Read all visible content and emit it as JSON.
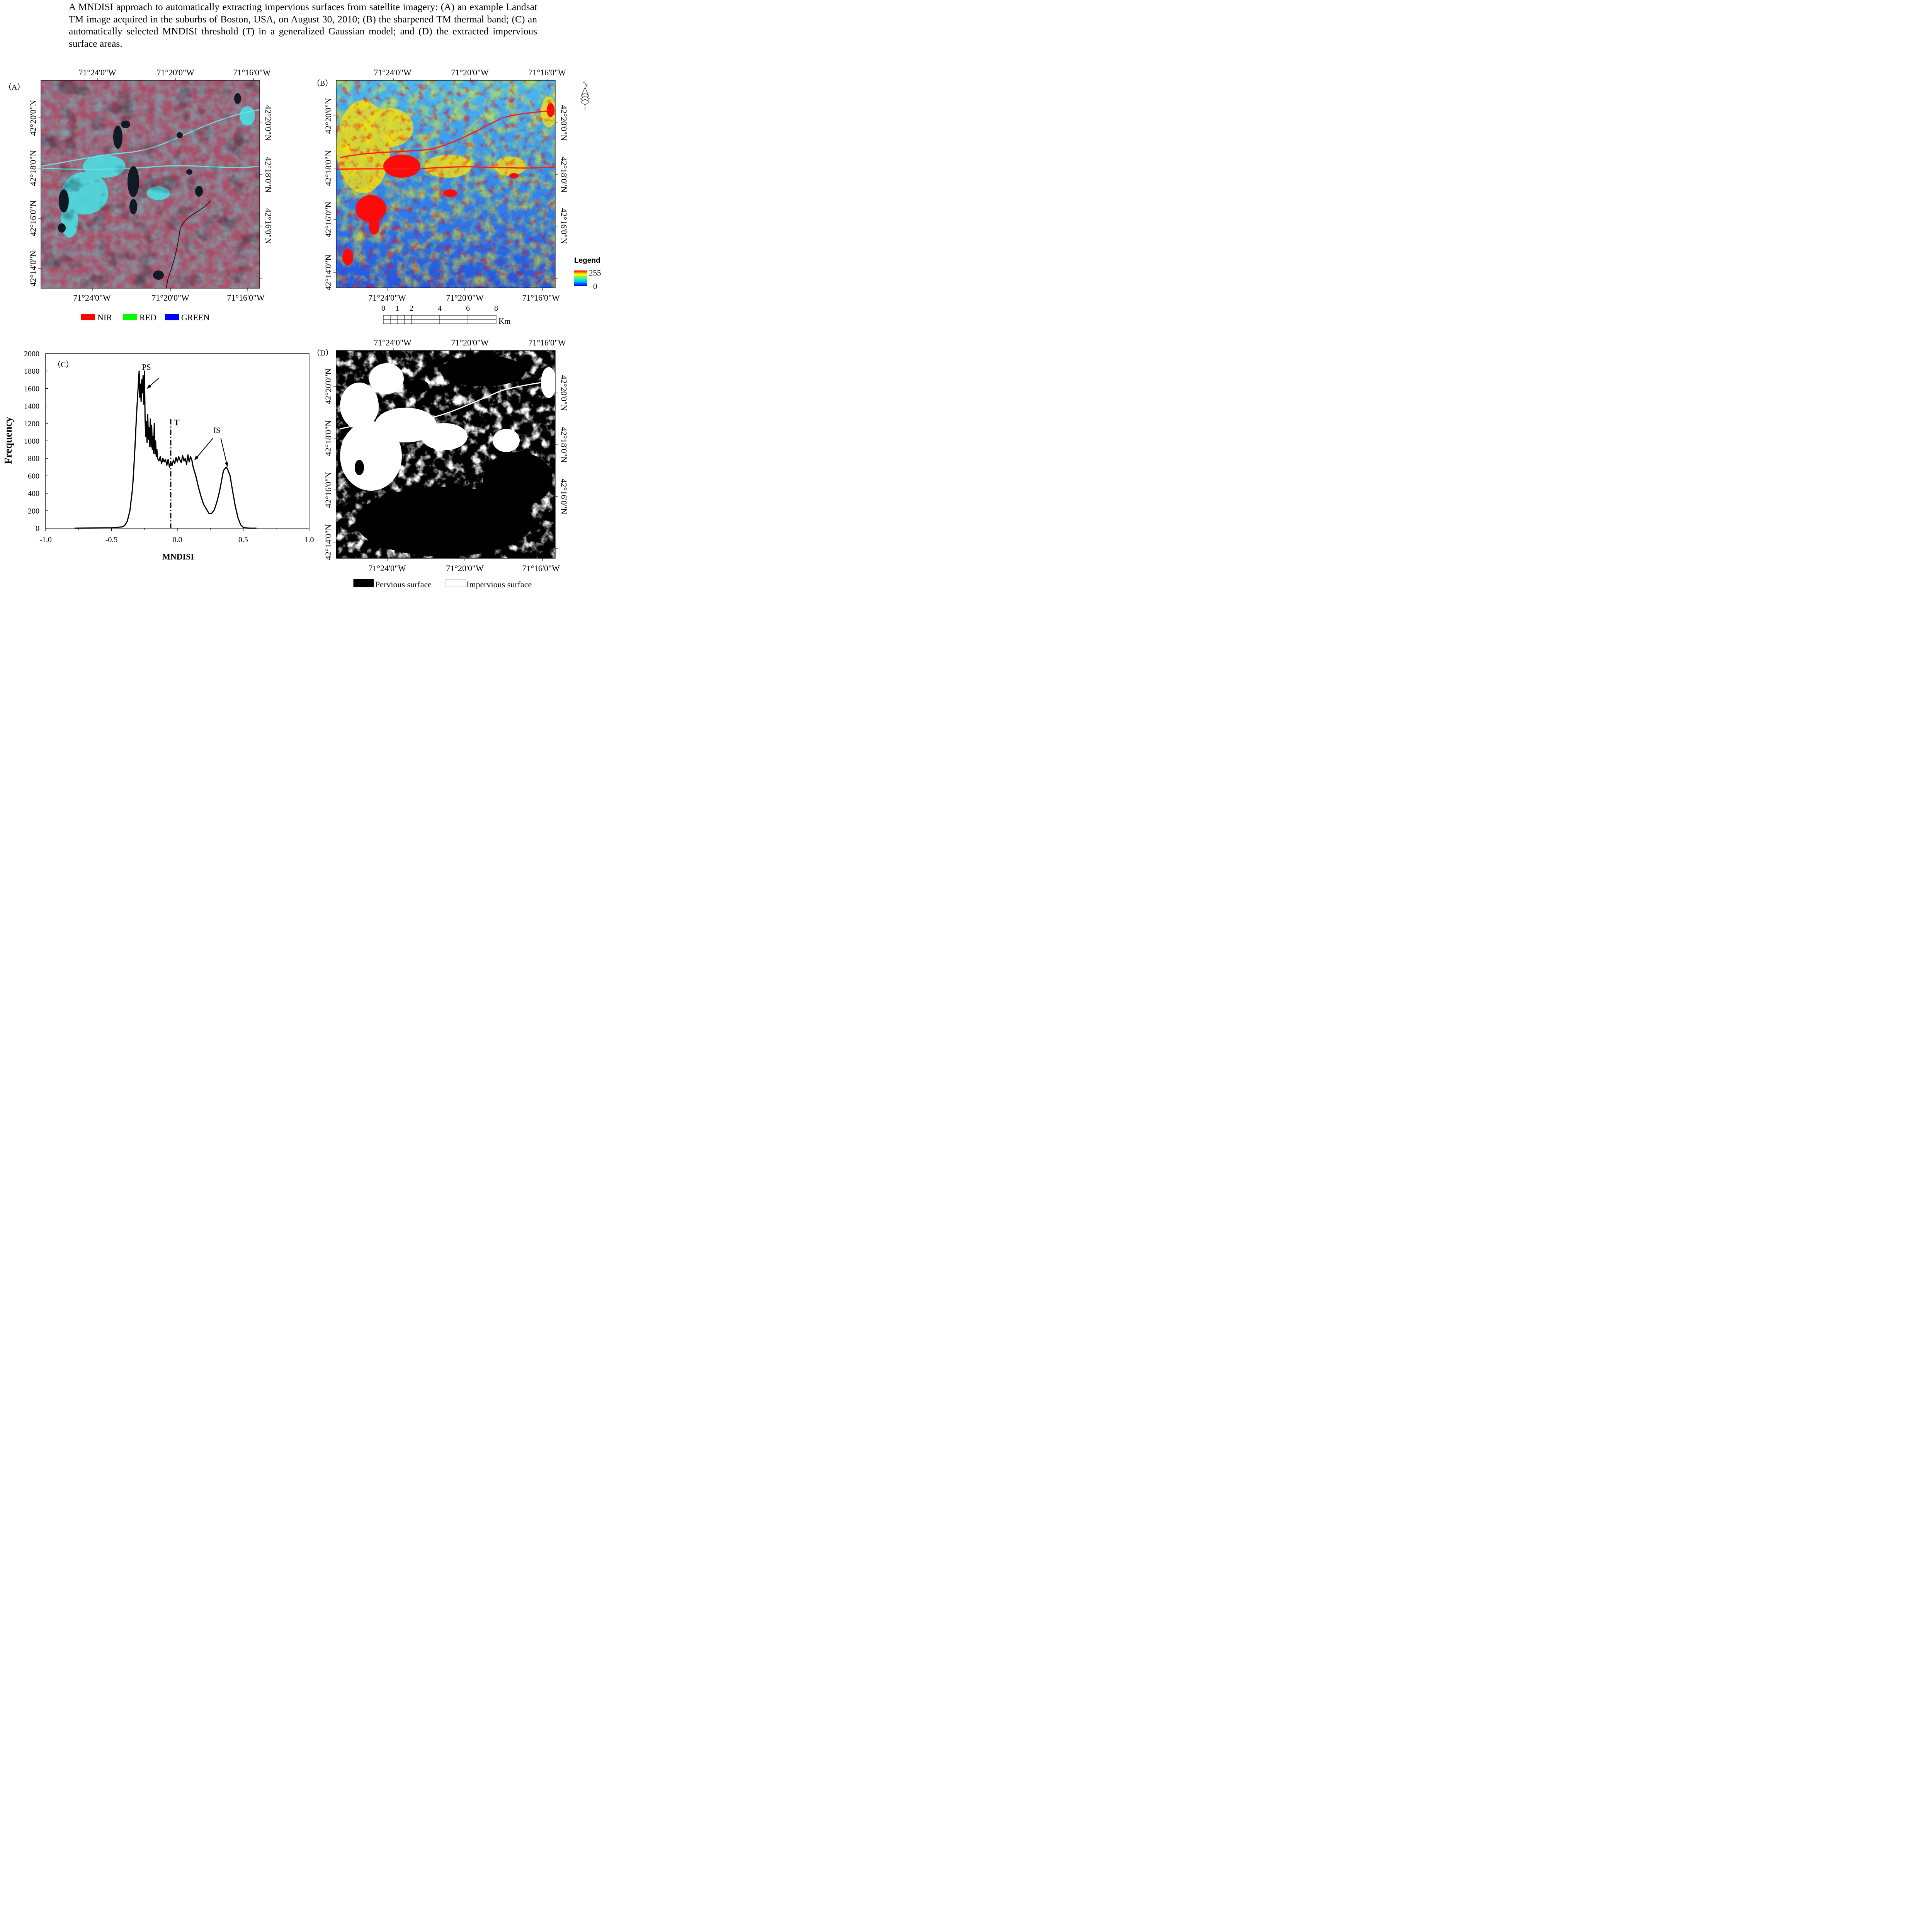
{
  "caption": {
    "before_t": "A MNDISI approach to automatically extracting impervious surfaces from satellite imagery: (A) an example Landsat TM image acquired in the suburbs of Boston, USA, on August 30, 2010; (B) the sharpened TM thermal band; (C) an automatically selected MNDISI threshold (",
    "t": "T",
    "after_t": ") in a generalized Gaussian model; and (D) the extracted impervious surface areas."
  },
  "coords": {
    "lon": [
      "71°24'0\"W",
      "71°20'0\"W",
      "71°16'0\"W"
    ],
    "lat": [
      "42°20'0\"N",
      "42°18'0\"N",
      "42°16'0\"N",
      "42°14'0\"N"
    ]
  },
  "panels": {
    "a": {
      "label": "（A）",
      "legend": [
        {
          "label": "NIR",
          "color": "#ff0000"
        },
        {
          "label": "RED",
          "color": "#00ff00"
        },
        {
          "label": "GREEN",
          "color": "#0000ff"
        }
      ]
    },
    "b": {
      "label": "（B）",
      "legend_title": "Legend",
      "legend_max": "255",
      "legend_min": "0",
      "scale_ticks": [
        "0",
        "1",
        "2",
        "4",
        "6",
        "8"
      ],
      "scale_unit": "Km",
      "colors": {
        "low": "#1f4fe8",
        "mid": "#3fb8f0",
        "high": "#ffe600",
        "top": "#ff0000"
      }
    },
    "c": {
      "label": "（C）"
    },
    "d": {
      "label": "（D）",
      "legend": [
        {
          "label": "Pervious surface",
          "color": "#000000"
        },
        {
          "label": "Impervious surface",
          "color": "#ffffff"
        }
      ]
    }
  },
  "chart_data": {
    "type": "line",
    "title": "",
    "xlabel": "MNDISI",
    "ylabel": "Frequency",
    "xlim": [
      -1.0,
      1.0
    ],
    "ylim": [
      0,
      2000
    ],
    "xticks": [
      "-1.0",
      "-0.5",
      "0.0",
      "0.5",
      "1.0"
    ],
    "yticks": [
      "0",
      "200",
      "400",
      "600",
      "800",
      "1000",
      "1200",
      "1400",
      "1600",
      "1800",
      "2000"
    ],
    "threshold": {
      "label": "T",
      "x": -0.05
    },
    "annotations": [
      {
        "text": "PS",
        "x": -0.24,
        "y": 1580
      },
      {
        "text": "IS",
        "x": 0.13,
        "y": 780
      },
      {
        "text": "IS",
        "x": 0.38,
        "y": 700
      }
    ],
    "x": [
      -0.78,
      -0.5,
      -0.42,
      -0.4,
      -0.38,
      -0.36,
      -0.34,
      -0.33,
      -0.32,
      -0.31,
      -0.3,
      -0.29,
      -0.285,
      -0.28,
      -0.275,
      -0.27,
      -0.265,
      -0.26,
      -0.255,
      -0.25,
      -0.245,
      -0.24,
      -0.235,
      -0.23,
      -0.225,
      -0.22,
      -0.215,
      -0.21,
      -0.205,
      -0.2,
      -0.195,
      -0.19,
      -0.185,
      -0.18,
      -0.175,
      -0.17,
      -0.165,
      -0.16,
      -0.155,
      -0.15,
      -0.14,
      -0.13,
      -0.12,
      -0.11,
      -0.1,
      -0.09,
      -0.08,
      -0.07,
      -0.06,
      -0.05,
      -0.04,
      -0.03,
      -0.02,
      -0.01,
      0.0,
      0.01,
      0.02,
      0.03,
      0.04,
      0.05,
      0.06,
      0.07,
      0.08,
      0.09,
      0.1,
      0.11,
      0.12,
      0.14,
      0.16,
      0.18,
      0.2,
      0.22,
      0.24,
      0.26,
      0.28,
      0.3,
      0.32,
      0.34,
      0.35,
      0.36,
      0.37,
      0.38,
      0.39,
      0.4,
      0.42,
      0.44,
      0.46,
      0.48,
      0.5,
      0.52,
      0.55,
      0.6
    ],
    "y": [
      0,
      5,
      15,
      30,
      80,
      200,
      460,
      700,
      980,
      1300,
      1550,
      1800,
      1500,
      1650,
      1450,
      1700,
      1550,
      1750,
      1420,
      1800,
      1250,
      1050,
      1220,
      980,
      1300,
      1020,
      1150,
      940,
      1250,
      930,
      1180,
      900,
      1050,
      860,
      1200,
      850,
      1000,
      820,
      900,
      800,
      770,
      820,
      740,
      800,
      760,
      790,
      720,
      790,
      700,
      760,
      720,
      780,
      740,
      810,
      760,
      820,
      780,
      750,
      830,
      770,
      800,
      730,
      840,
      760,
      820,
      780,
      700,
      600,
      470,
      360,
      270,
      220,
      170,
      170,
      210,
      300,
      420,
      580,
      660,
      680,
      700,
      680,
      640,
      600,
      420,
      250,
      120,
      40,
      10,
      3,
      0,
      0
    ]
  }
}
